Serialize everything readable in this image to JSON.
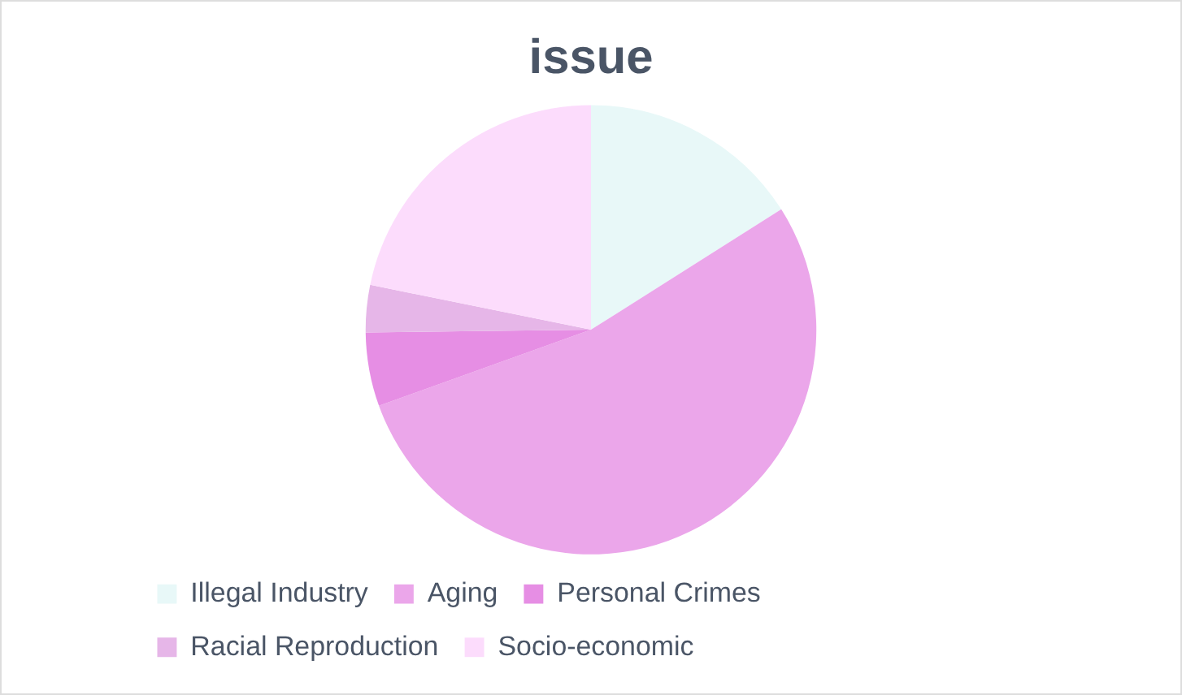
{
  "chart_data": {
    "type": "pie",
    "title": "issue",
    "categories": [
      "Illegal Industry",
      "Aging",
      "Personal Crimes",
      "Racial Reproduction",
      "Socio-economic"
    ],
    "values": [
      16,
      53.5,
      5.3,
      3.4,
      21.8
    ],
    "colors": [
      "#e8f8f8",
      "#eba6ea",
      "#e68ee4",
      "#e6b6e8",
      "#fcdcfc"
    ],
    "legend": "bottom"
  }
}
